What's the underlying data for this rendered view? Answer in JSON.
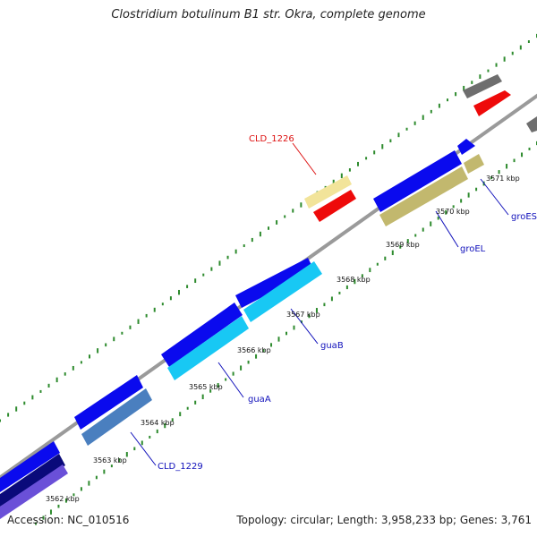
{
  "title": "Clostridium botulinum B1 str. Okra, complete genome",
  "footer": {
    "accession": "Accession: NC_010516",
    "summary": "Topology: circular; Length: 3,958,233 bp; Genes: 3,761"
  },
  "colors": {
    "backbone": "#9a9a9a",
    "gc_dots": "#2e8b2e",
    "cds_blue": "#0a0aee",
    "light_blue": "#18c8f4",
    "steel_blue": "#4a7fbf",
    "khaki": "#c2b86e",
    "pale_yellow": "#f2e49a",
    "red": "#ee0a0a",
    "gray": "#6e6e6e",
    "navy": "#0a0a7a",
    "purple": "#6a50d8",
    "label_blue": "#1111bb",
    "label_red": "#dd1111"
  },
  "ticks": [
    "3562 kbp",
    "3563 kbp",
    "3564 kbp",
    "3565 kbp",
    "3566 kbp",
    "3567 kbp",
    "3568 kbp",
    "3569 kbp",
    "3570 kbp",
    "3571 kbp"
  ],
  "gene_labels": [
    "CLD_1226",
    "guaB",
    "guaA",
    "groEL",
    "groES",
    "CLD_1229"
  ]
}
